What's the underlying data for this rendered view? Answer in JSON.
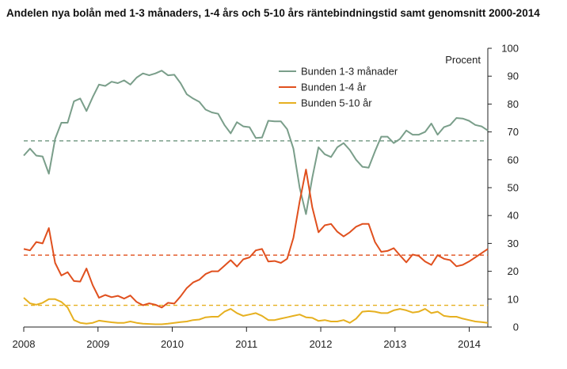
{
  "chart_data": {
    "type": "line",
    "title": "Andelen nya bolån med 1-3 månaders, 1-4 års och 5-10 års räntebindningstid samt genomsnitt 2000-2014",
    "ylabel": "Procent",
    "xlabel": "",
    "ylim": [
      0,
      100
    ],
    "xlim": [
      2008.0,
      2014.25
    ],
    "y_axis_position": "right",
    "y_ticks": [
      "0",
      "10",
      "20",
      "30",
      "40",
      "50",
      "60",
      "70",
      "80",
      "90",
      "100"
    ],
    "x_ticks": [
      {
        "label": "2008",
        "value": 2008
      },
      {
        "label": "2009",
        "value": 2009
      },
      {
        "label": "2010",
        "value": 2010
      },
      {
        "label": "2011",
        "value": 2011
      },
      {
        "label": "2012",
        "value": 2012
      },
      {
        "label": "2013",
        "value": 2013
      },
      {
        "label": "2014",
        "value": 2014
      }
    ],
    "grid": false,
    "legend_position": "top-center",
    "series": [
      {
        "name": "Bunden 1-3 månader",
        "color": "#7a9e8a",
        "average": 66.8,
        "values": [
          61.5,
          64,
          61.5,
          61.2,
          55,
          67.5,
          73.3,
          73.3,
          81,
          82,
          77.5,
          82.5,
          87,
          86.5,
          88,
          87.5,
          88.5,
          87,
          89.5,
          91,
          90.3,
          91,
          92,
          90.3,
          90.5,
          87.5,
          83.5,
          82,
          80.8,
          78,
          77,
          76.5,
          72.5,
          69.5,
          73.5,
          72,
          71.7,
          67.8,
          68,
          74,
          73.8,
          73.8,
          71,
          64,
          50,
          40.5,
          53.5,
          64.5,
          62,
          61,
          64.5,
          66,
          63.5,
          60,
          57.5,
          57.2,
          63,
          68.3,
          68.3,
          66,
          67.5,
          70.5,
          69,
          69,
          70,
          73,
          69,
          71.7,
          72.5,
          75,
          74.8,
          74,
          72.5,
          72,
          70.5
        ]
      },
      {
        "name": "Bunden 1-4 år",
        "color": "#e0501e",
        "average": 25.8,
        "values": [
          28,
          27.5,
          30.5,
          30,
          35.5,
          23,
          18.5,
          19.7,
          16.5,
          16.3,
          21,
          15,
          10.5,
          11.5,
          10.7,
          11.2,
          10.2,
          11.3,
          9,
          7.8,
          8.5,
          8,
          7,
          8.7,
          8.4,
          11,
          14,
          16,
          17,
          19,
          20,
          20,
          22,
          24,
          21.7,
          24.3,
          25,
          27.5,
          28,
          23.5,
          23.7,
          23,
          24.5,
          32,
          45,
          56.5,
          43,
          34,
          36.5,
          37,
          34.2,
          32.5,
          34,
          36,
          37,
          37,
          30.5,
          27,
          27.3,
          28.3,
          25.7,
          23.2,
          26,
          25.5,
          23.5,
          22.3,
          25.8,
          24.5,
          24,
          21.8,
          22.3,
          23.5,
          25,
          26.5,
          28
        ]
      },
      {
        "name": "Bunden 5-10 år",
        "color": "#e6b020",
        "average": 7.8,
        "values": [
          10.5,
          8.5,
          8,
          8.7,
          10,
          10,
          9,
          7,
          2.5,
          1.5,
          1.2,
          1.5,
          2.3,
          2,
          1.7,
          1.5,
          1.5,
          2,
          1.5,
          1.2,
          1.1,
          1,
          1,
          1.2,
          1.5,
          1.8,
          2,
          2.5,
          2.7,
          3.5,
          3.7,
          3.7,
          5.5,
          6.5,
          5,
          4,
          4.5,
          5,
          4,
          2.5,
          2.5,
          3,
          3.5,
          4,
          4.5,
          3.5,
          3.3,
          2.2,
          2.5,
          2,
          2,
          2.5,
          1.5,
          3,
          5.5,
          5.7,
          5.5,
          5,
          5,
          6,
          6.5,
          6,
          5.2,
          5.5,
          6.5,
          5,
          5.5,
          4,
          3.7,
          3.7,
          3,
          2.5,
          2,
          1.8,
          1.5
        ]
      }
    ]
  }
}
